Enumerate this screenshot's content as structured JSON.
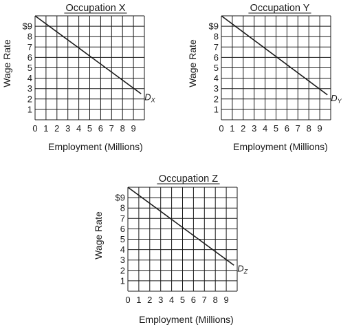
{
  "chart_data": [
    {
      "type": "line",
      "title": "Occupation X",
      "xlabel": "Employment (Millions)",
      "ylabel": "Wage Rate",
      "x_ticks": [
        "0",
        "1",
        "2",
        "3",
        "4",
        "5",
        "6",
        "7",
        "8",
        "9"
      ],
      "y_ticks": [
        "1",
        "2",
        "3",
        "4",
        "5",
        "6",
        "7",
        "8",
        "$9"
      ],
      "xlim": [
        0,
        10
      ],
      "ylim": [
        0,
        10
      ],
      "grid": true,
      "series": [
        {
          "name": "D",
          "subscript": "X",
          "x": [
            0,
            9.7
          ],
          "y": [
            10,
            2.5
          ]
        }
      ]
    },
    {
      "type": "line",
      "title": "Occupation Y",
      "xlabel": "Employment (Millions)",
      "ylabel": "Wage Rate",
      "x_ticks": [
        "0",
        "1",
        "2",
        "3",
        "4",
        "5",
        "6",
        "7",
        "8",
        "9"
      ],
      "y_ticks": [
        "1",
        "2",
        "3",
        "4",
        "5",
        "6",
        "7",
        "8",
        "$9"
      ],
      "xlim": [
        0,
        10
      ],
      "ylim": [
        0,
        10
      ],
      "grid": true,
      "series": [
        {
          "name": "D",
          "subscript": "Y",
          "x": [
            0,
            9.7
          ],
          "y": [
            10,
            2.4
          ]
        }
      ]
    },
    {
      "type": "line",
      "title": "Occupation Z",
      "xlabel": "Employment (Millions)",
      "ylabel": "Wage Rate",
      "x_ticks": [
        "0",
        "1",
        "2",
        "3",
        "4",
        "5",
        "6",
        "7",
        "8",
        "9"
      ],
      "y_ticks": [
        "1",
        "2",
        "3",
        "4",
        "5",
        "6",
        "7",
        "8",
        "$9"
      ],
      "xlim": [
        0,
        10
      ],
      "ylim": [
        0,
        10
      ],
      "grid": true,
      "series": [
        {
          "name": "D",
          "subscript": "Z",
          "x": [
            0,
            9.7
          ],
          "y": [
            10,
            2.5
          ]
        }
      ]
    }
  ],
  "colors": {
    "grid": "#1a1a1a",
    "line": "#1a1a1a",
    "text": "#1a1a1a"
  }
}
